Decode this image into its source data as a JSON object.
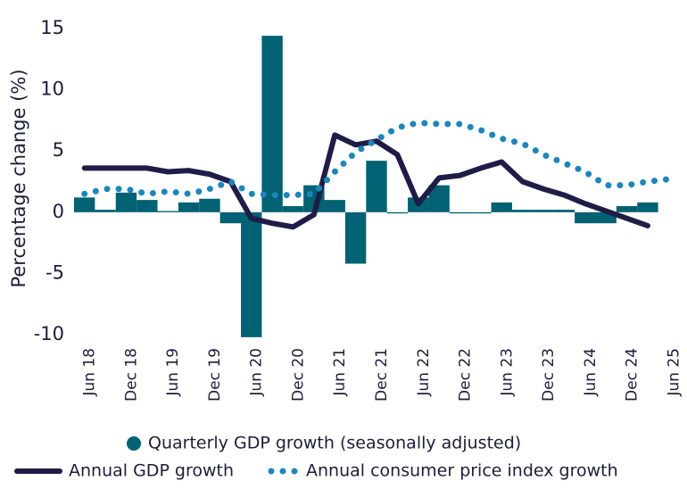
{
  "chart_data": {
    "type": "combo",
    "y_label": "Percentage change (%)",
    "categories": [
      "Jun 18",
      null,
      "Dec 18",
      null,
      "Jun 19",
      null,
      "Dec 19",
      null,
      "Jun 20",
      null,
      "Dec 20",
      null,
      "Jun 21",
      null,
      "Dec 21",
      null,
      "Jun 22",
      null,
      "Dec 22",
      null,
      "Jun 23",
      null,
      "Dec 23",
      null,
      "Jun 24",
      null,
      "Dec 24",
      null,
      "Jun 25"
    ],
    "ylim": [
      -10.5,
      15.5
    ],
    "yticks": [
      15,
      10,
      5,
      0,
      -5,
      -10
    ],
    "grid": false,
    "series": [
      {
        "name": "Quarterly GDP growth (seasonally adjusted)",
        "type": "bar",
        "color": "#006272",
        "values": [
          1.2,
          0.2,
          1.6,
          1.0,
          0.1,
          0.8,
          1.1,
          -0.9,
          -10.2,
          14.4,
          0.5,
          2.2,
          1.0,
          -4.2,
          4.2,
          -0.1,
          1.2,
          2.2,
          -0.1,
          -0.1,
          0.8,
          0.2,
          0.2,
          0.2,
          -0.9,
          -0.9,
          0.5,
          0.8,
          null
        ]
      },
      {
        "name": "Annual GDP growth",
        "type": "line",
        "dash": "solid",
        "color": "#1f1d47",
        "values": [
          3.6,
          3.6,
          3.6,
          3.6,
          3.3,
          3.4,
          3.1,
          2.5,
          -0.5,
          -0.9,
          -1.2,
          -0.2,
          6.3,
          5.5,
          5.8,
          4.7,
          0.7,
          2.8,
          3.0,
          3.6,
          4.1,
          2.5,
          1.9,
          1.4,
          0.7,
          0.1,
          -0.5,
          -1.1,
          null
        ]
      },
      {
        "name": "Annual consumer price index growth",
        "type": "line",
        "dash": "dotted",
        "color": "#1a86c0",
        "values": [
          1.5,
          1.9,
          1.9,
          1.5,
          1.7,
          1.5,
          1.9,
          2.5,
          1.5,
          1.4,
          1.4,
          1.5,
          3.3,
          4.9,
          5.9,
          6.9,
          7.3,
          7.2,
          7.2,
          6.7,
          6.0,
          5.6,
          4.7,
          4.0,
          3.3,
          2.2,
          2.2,
          2.5,
          2.7
        ]
      }
    ]
  }
}
